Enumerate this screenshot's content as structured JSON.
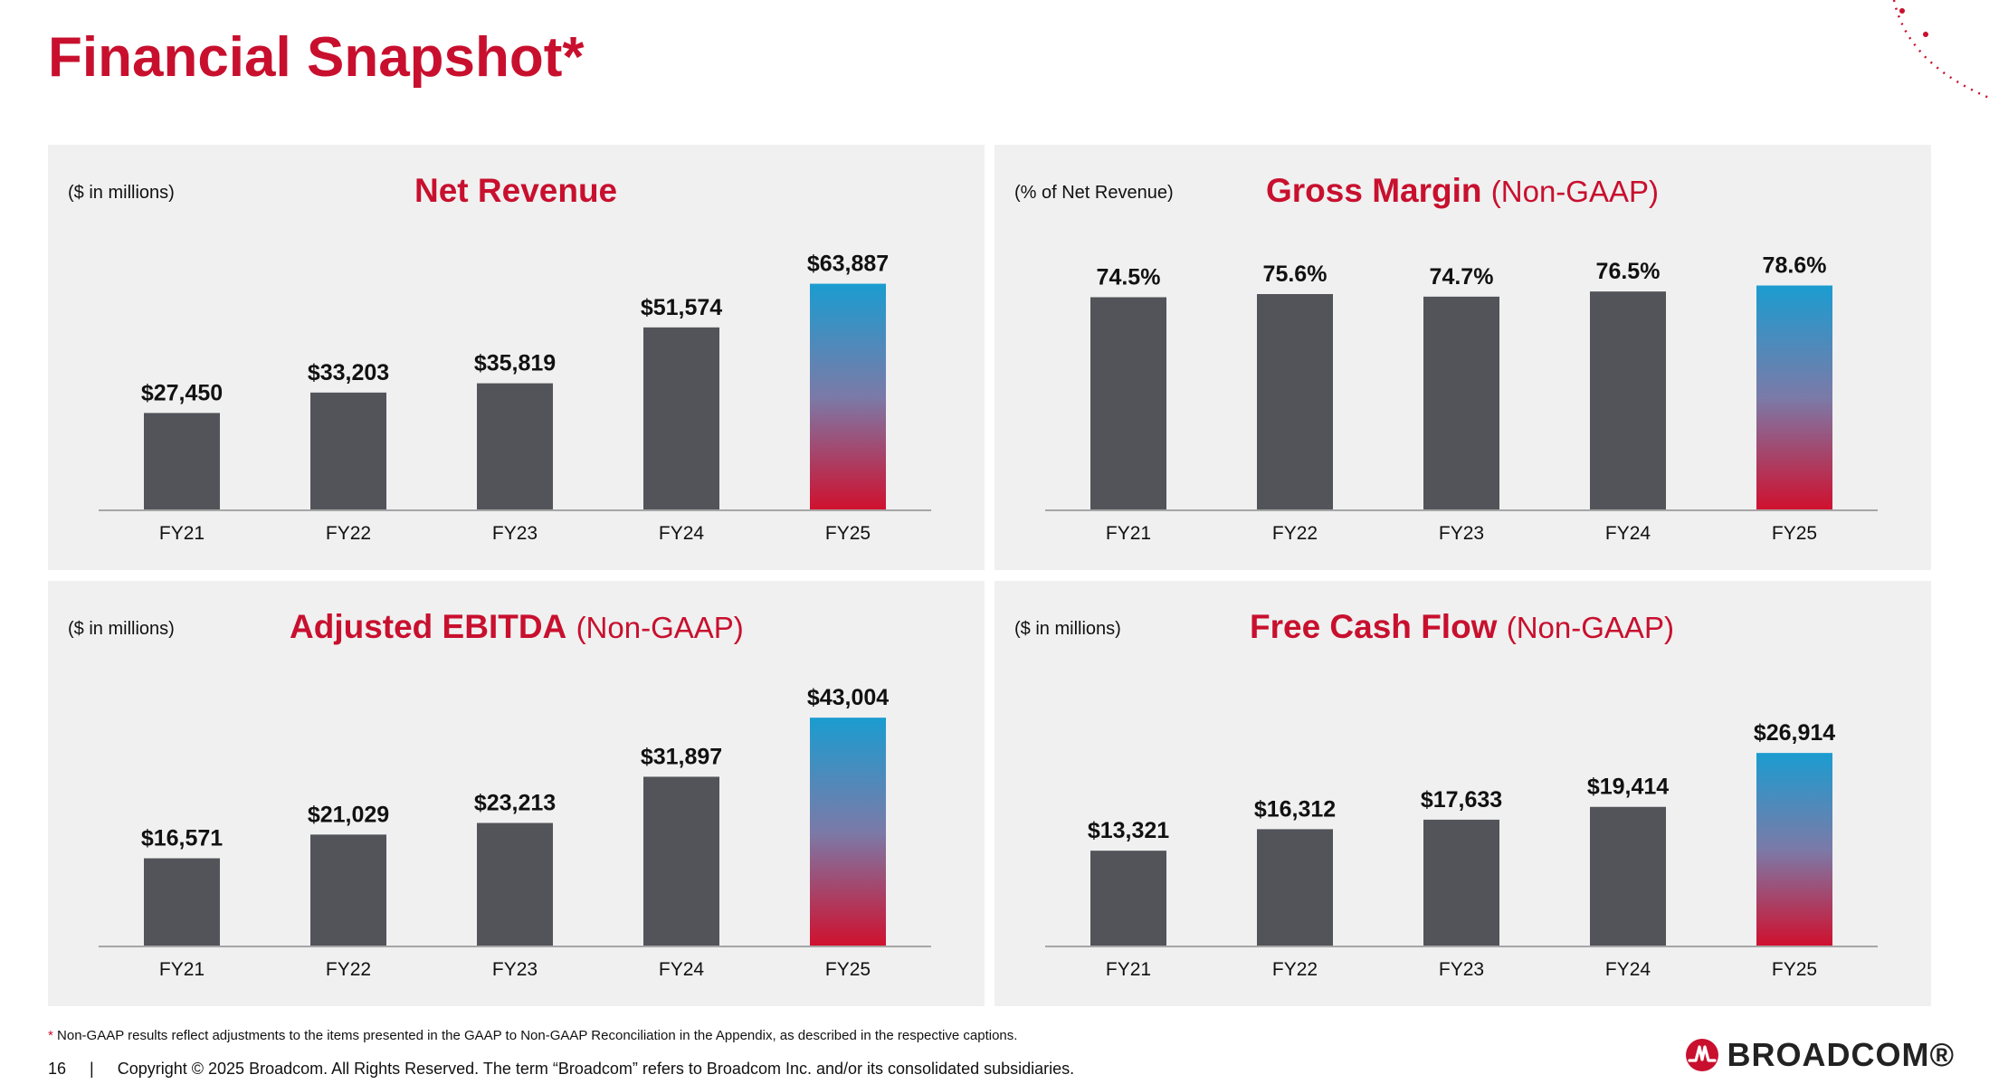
{
  "page": {
    "title": "Financial Snapshot*",
    "footnote_marker": "*",
    "footnote_text": "Non-GAAP results reflect adjustments to the items presented in the GAAP to Non-GAAP Reconciliation in the Appendix, as described in the respective captions.",
    "page_number": "16",
    "separator": "|",
    "copyright": "Copyright © 2025 Broadcom.  All Rights Reserved. The term “Broadcom” refers to Broadcom Inc. and/or its consolidated subsidiaries.",
    "logo_text": "BROADCOM®",
    "logo_icon": "broadcom-logo-icon"
  },
  "colors": {
    "brand_red": "#c8102e",
    "bar_gray": "#525459",
    "gradient_top": "#1b9cd0",
    "gradient_mid": "#7b7aa8",
    "gradient_bottom": "#d0102e",
    "panel_bg": "#f0f0f0"
  },
  "chart_data": [
    {
      "id": "net-revenue",
      "type": "bar",
      "title": "Net Revenue",
      "title_qualifier": "",
      "unit_label": "($ in millions)",
      "categories": [
        "FY21",
        "FY22",
        "FY23",
        "FY24",
        "FY25"
      ],
      "values": [
        27450,
        33203,
        35819,
        51574,
        63887
      ],
      "data_labels": [
        "$27,450",
        "$33,203",
        "$35,819",
        "$51,574",
        "$63,887"
      ],
      "ylim": [
        0,
        75000
      ],
      "highlight_index": 4
    },
    {
      "id": "gross-margin",
      "type": "bar",
      "title": "Gross Margin",
      "title_qualifier": "(Non-GAAP)",
      "unit_label": "(% of Net Revenue)",
      "categories": [
        "FY21",
        "FY22",
        "FY23",
        "FY24",
        "FY25"
      ],
      "values": [
        74.5,
        75.6,
        74.7,
        76.5,
        78.6
      ],
      "data_labels": [
        "74.5%",
        "75.6%",
        "74.7%",
        "76.5%",
        "78.6%"
      ],
      "ylim": [
        0,
        93
      ],
      "highlight_index": 4
    },
    {
      "id": "adjusted-ebitda",
      "type": "bar",
      "title": "Adjusted EBITDA",
      "title_qualifier": "(Non-GAAP)",
      "unit_label": "($ in millions)",
      "categories": [
        "FY21",
        "FY22",
        "FY23",
        "FY24",
        "FY25"
      ],
      "values": [
        16571,
        21029,
        23213,
        31897,
        43004
      ],
      "data_labels": [
        "$16,571",
        "$21,029",
        "$23,213",
        "$31,897",
        "$43,004"
      ],
      "ylim": [
        0,
        50000
      ],
      "highlight_index": 4
    },
    {
      "id": "free-cash-flow",
      "type": "bar",
      "title": "Free Cash Flow",
      "title_qualifier": "(Non-GAAP)",
      "unit_label": "($ in millions)",
      "categories": [
        "FY21",
        "FY22",
        "FY23",
        "FY24",
        "FY25"
      ],
      "values": [
        13321,
        16312,
        17633,
        19414,
        26914
      ],
      "data_labels": [
        "$13,321",
        "$16,312",
        "$17,633",
        "$19,414",
        "$26,914"
      ],
      "ylim": [
        0,
        37000
      ],
      "highlight_index": 4
    }
  ]
}
